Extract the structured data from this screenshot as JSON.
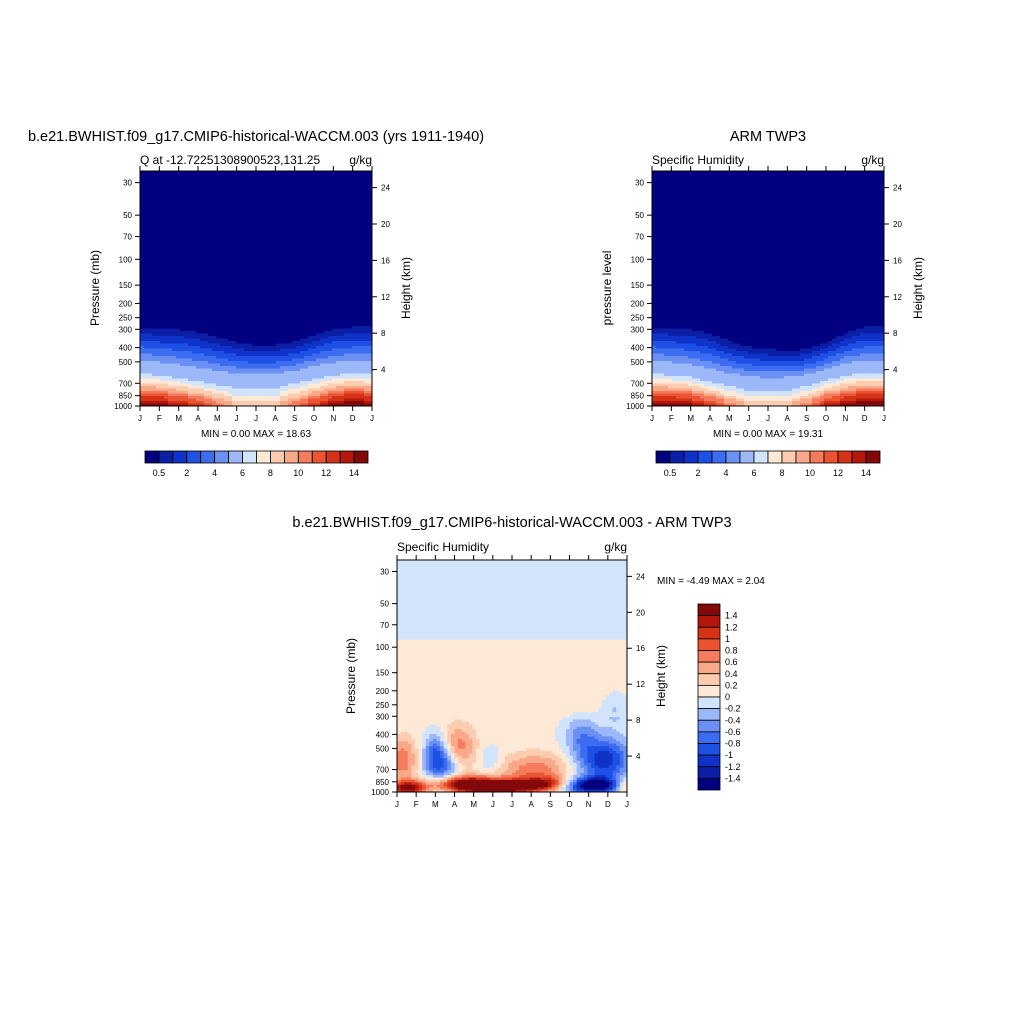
{
  "panels": [
    {
      "title": "b.e21.BWHIST.f09_g17.CMIP6-historical-WACCM.003 (yrs 1911-1940)",
      "left_label": "Q at -12.72251308900523,131.25",
      "right_label": "g/kg",
      "ylabel": "Pressure (mb)",
      "y2label": "Height (km)",
      "minmax": "MIN =   0.00 MAX =  18.63"
    },
    {
      "title": "ARM TWP3",
      "left_label": "Specific Humidity",
      "right_label": "g/kg",
      "ylabel": "pressure level",
      "y2label": "Height (km)",
      "minmax": "MIN =   0.00 MAX =  19.31"
    },
    {
      "title": "b.e21.BWHIST.f09_g17.CMIP6-historical-WACCM.003 - ARM TWP3",
      "left_label": "Specific Humidity",
      "right_label": "g/kg",
      "ylabel": "Pressure (mb)",
      "y2label": "Height (km)",
      "minmax": "MIN =  -4.49 MAX =   2.04"
    }
  ],
  "chart_data": [
    {
      "type": "heatmap",
      "title": "b.e21.BWHIST.f09_g17.CMIP6-historical-WACCM.003 (yrs 1911-1940)",
      "xlabel": "",
      "ylabel": "Pressure (mb)",
      "y2label": "Height (km)",
      "x_ticks": [
        "J",
        "F",
        "M",
        "A",
        "M",
        "J",
        "J",
        "A",
        "S",
        "O",
        "N",
        "D",
        "J"
      ],
      "y_ticks": [
        30,
        50,
        70,
        100,
        150,
        200,
        250,
        300,
        400,
        500,
        700,
        850,
        1000
      ],
      "y2_ticks": [
        4,
        8,
        12,
        16,
        20,
        24
      ],
      "ylim": [
        1000,
        25
      ],
      "y_scale": "log",
      "units": "g/kg",
      "min": 0.0,
      "max": 18.63,
      "colorbar_labels": [
        "0.5",
        "2",
        "4",
        "6",
        "8",
        "10",
        "12",
        "14"
      ],
      "colorbar_colors": [
        "#000080",
        "#0a1ea6",
        "#0f32c8",
        "#1e50e6",
        "#3c6cf0",
        "#6a90f4",
        "#9cb8f8",
        "#d2e4fb",
        "#fde9d6",
        "#fcccb0",
        "#f9a88a",
        "#f47c5c",
        "#ea5432",
        "#d43318",
        "#b2190c",
        "#82080a"
      ],
      "moisture_top": [
        290,
        297,
        300,
        315,
        340,
        368,
        385,
        383,
        365,
        330,
        298,
        290,
        290
      ],
      "mid_pressure": [
        540,
        560,
        580,
        610,
        640,
        660,
        670,
        660,
        630,
        590,
        560,
        540,
        540
      ],
      "surface_q": [
        14,
        14,
        13,
        12,
        10,
        8,
        7.5,
        8,
        10,
        12,
        14,
        15,
        14
      ]
    },
    {
      "type": "heatmap",
      "title": "ARM TWP3",
      "xlabel": "",
      "ylabel": "pressure level",
      "y2label": "Height (km)",
      "x_ticks": [
        "J",
        "F",
        "M",
        "A",
        "M",
        "J",
        "J",
        "A",
        "S",
        "O",
        "N",
        "D",
        "J"
      ],
      "y_ticks": [
        30,
        50,
        70,
        100,
        150,
        200,
        250,
        300,
        400,
        500,
        700,
        850,
        1000
      ],
      "y2_ticks": [
        4,
        8,
        12,
        16,
        20,
        24
      ],
      "ylim": [
        1000,
        25
      ],
      "y_scale": "log",
      "units": "g/kg",
      "min": 0.0,
      "max": 19.31,
      "colorbar_labels": [
        "0.5",
        "2",
        "4",
        "6",
        "8",
        "10",
        "12",
        "14"
      ],
      "colorbar_colors": [
        "#000080",
        "#0a1ea6",
        "#0f32c8",
        "#1e50e6",
        "#3c6cf0",
        "#6a90f4",
        "#9cb8f8",
        "#d2e4fb",
        "#fde9d6",
        "#fcccb0",
        "#f9a88a",
        "#f47c5c",
        "#ea5432",
        "#d43318",
        "#b2190c",
        "#82080a"
      ],
      "moisture_top": [
        290,
        295,
        300,
        320,
        360,
        395,
        410,
        420,
        410,
        370,
        320,
        290,
        290
      ],
      "mid_pressure": [
        540,
        560,
        580,
        620,
        660,
        690,
        700,
        690,
        660,
        610,
        560,
        540,
        540
      ],
      "surface_q": [
        14.5,
        14,
        13.5,
        12,
        10,
        8,
        7.5,
        8,
        10,
        12.5,
        14,
        15,
        14.5
      ]
    },
    {
      "type": "heatmap",
      "title": "b.e21.BWHIST.f09_g17.CMIP6-historical-WACCM.003 - ARM TWP3",
      "xlabel": "",
      "ylabel": "Pressure (mb)",
      "y2label": "Height (km)",
      "x_ticks": [
        "J",
        "F",
        "M",
        "A",
        "M",
        "J",
        "J",
        "A",
        "S",
        "O",
        "N",
        "D",
        "J"
      ],
      "y_ticks": [
        30,
        50,
        70,
        100,
        150,
        200,
        250,
        300,
        400,
        500,
        700,
        850,
        1000
      ],
      "y2_ticks": [
        4,
        8,
        12,
        16,
        20,
        24
      ],
      "ylim": [
        1000,
        25
      ],
      "y_scale": "log",
      "units": "g/kg",
      "min": -4.49,
      "max": 2.04,
      "colorbar_labels": [
        "1.4",
        "1.2",
        "1",
        "0.8",
        "0.6",
        "0.4",
        "0.2",
        "0",
        "-0.2",
        "-0.4",
        "-0.6",
        "-0.8",
        "-1",
        "-1.2",
        "-1.4"
      ],
      "colorbar_colors": [
        "#82080a",
        "#b2190c",
        "#d43318",
        "#ea5432",
        "#f47c5c",
        "#f9a88a",
        "#fcccb0",
        "#fde9d6",
        "#d2e4fb",
        "#9cb8f8",
        "#6a90f4",
        "#3c6cf0",
        "#1e50e6",
        "#0f32c8",
        "#0a1ea6",
        "#000080"
      ]
    }
  ]
}
